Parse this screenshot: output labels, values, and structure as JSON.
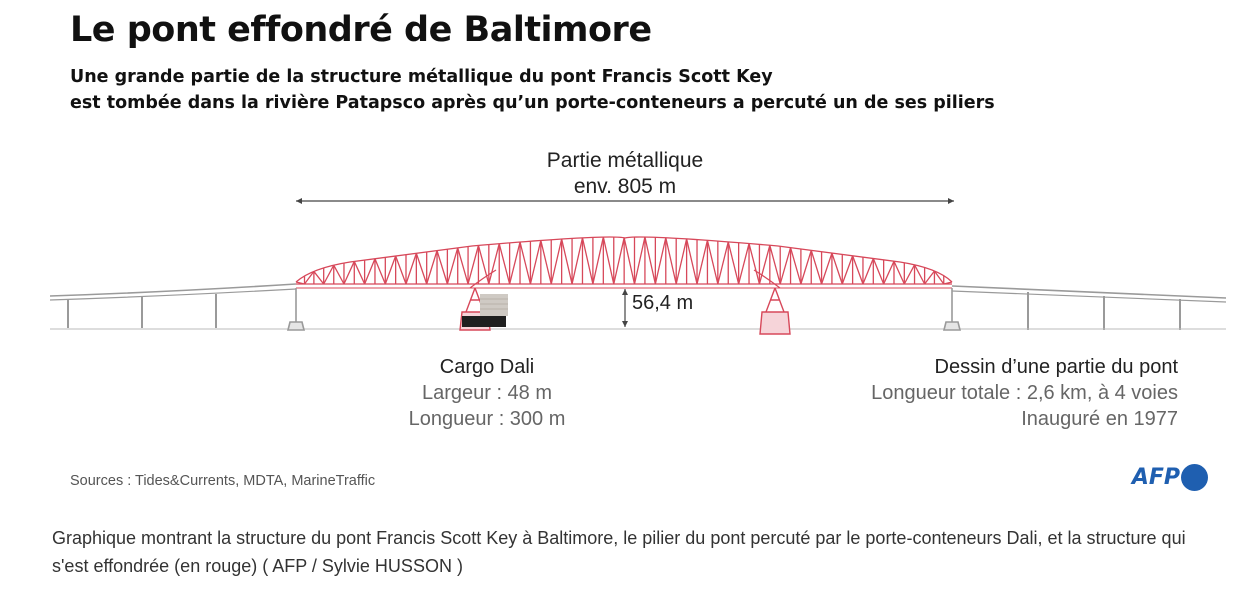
{
  "graphic": {
    "title": "Le pont effondré de Baltimore",
    "subtitle_lines": [
      "Une grande partie de la structure métallique du pont Francis Scott Key",
      "est tombée dans la rivière Patapsco après qu’un porte-conteneurs a percuté un de ses piliers"
    ],
    "span_label": {
      "line1": "Partie métallique",
      "line2": "env. 805 m"
    },
    "clearance_label": "56,4 m",
    "cargo": {
      "name": "Cargo Dali",
      "width": "Largeur : 48 m",
      "length": "Longueur : 300 m"
    },
    "bridge_info": {
      "heading": "Dessin d’une partie du pont",
      "length": "Longueur totale : 2,6 km, à 4 voies",
      "inaugurated": "Inauguré en 1977"
    },
    "sources": "Sources : Tides&Currents, MDTA, MarineTraffic",
    "logo_text": "AFP",
    "colors": {
      "collapsed": "#d7485a",
      "intact": "#9a9a9a",
      "logo": "#1f5fb0"
    }
  },
  "caption": "Graphique montrant la structure du pont Francis Scott Key à Baltimore, le pilier du pont percuté par le porte-conteneurs Dali, et la structure qui s'est effondrée (en rouge) ( AFP / Sylvie HUSSON )"
}
